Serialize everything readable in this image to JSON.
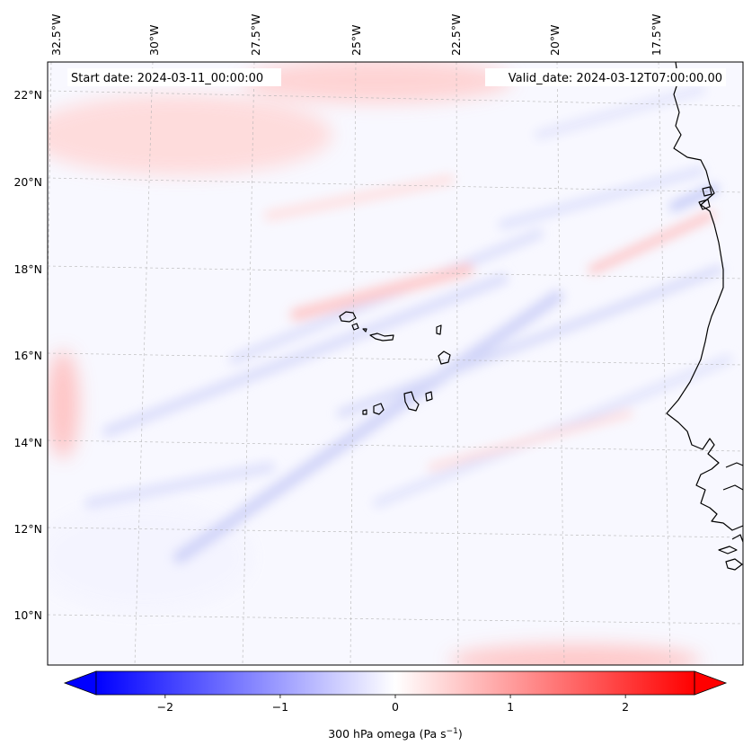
{
  "map": {
    "start_label": "Start date: 2024-03-11_00:00:00",
    "valid_label": "Valid_date: 2024-03-12T07:00:00.00",
    "lon_labels": [
      "32.5°W",
      "30°W",
      "27.5°W",
      "25°W",
      "22.5°W",
      "20°W",
      "17.5°W"
    ],
    "lat_labels": [
      "22°N",
      "20°N",
      "18°N",
      "16°N",
      "14°N",
      "12°N",
      "10°N"
    ]
  },
  "colorbar": {
    "label": "300 hPa omega (Pa s",
    "label_sup": "−1",
    "label_end": ")",
    "ticks": [
      "−2",
      "−1",
      "0",
      "1",
      "2"
    ],
    "tick_values": [
      -2,
      -1,
      0,
      1,
      2
    ],
    "range": [
      -2.6,
      2.6
    ],
    "low_color": "#0000ff",
    "mid_color": "#ffffff",
    "high_color": "#ff0000"
  }
}
